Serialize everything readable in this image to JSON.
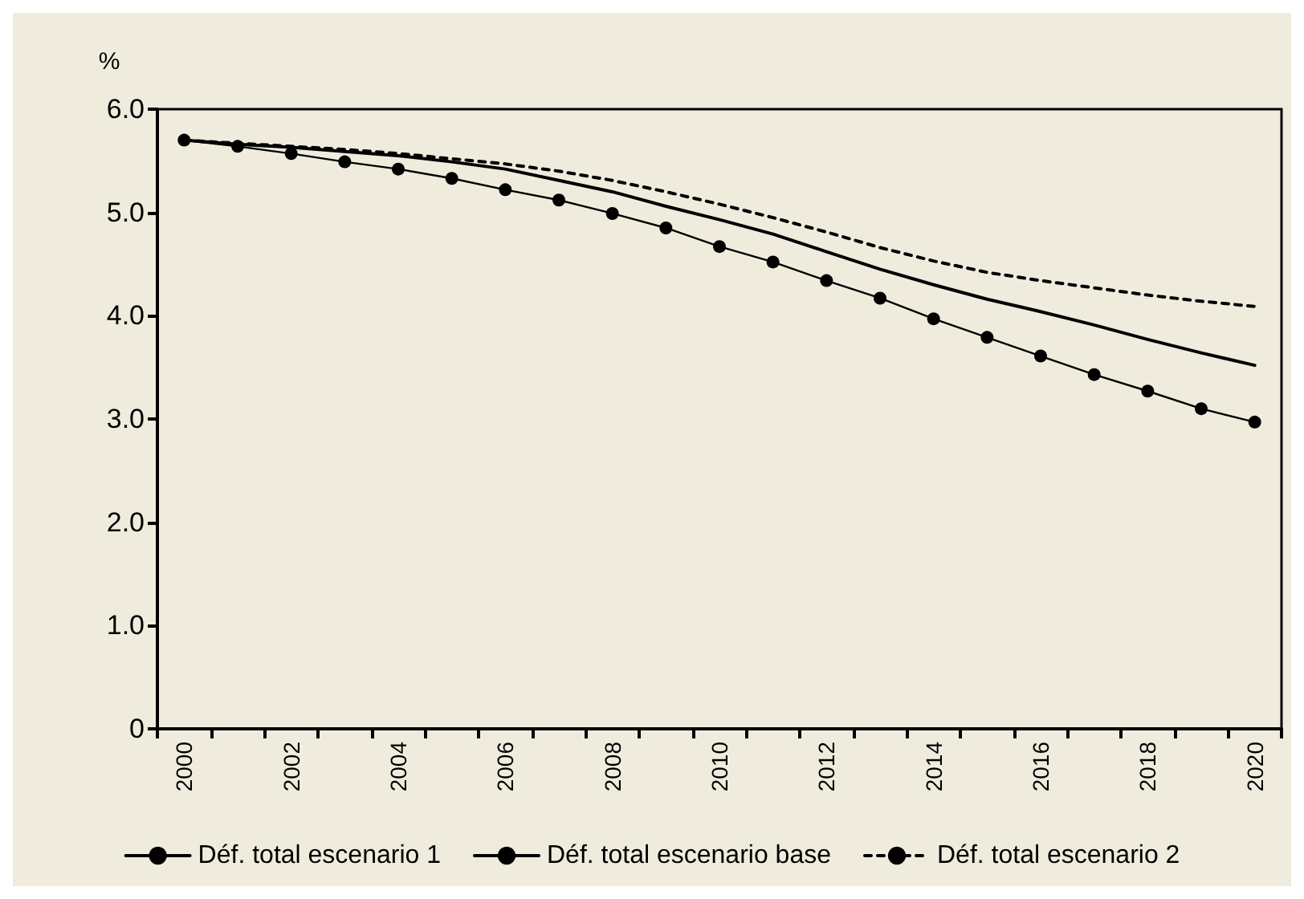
{
  "chart_data": {
    "type": "line",
    "ylabel": "%",
    "categories": [
      "2000",
      null,
      "2002",
      null,
      "2004",
      null,
      "2006",
      null,
      "2008",
      null,
      "2010",
      null,
      "2012",
      null,
      "2014",
      null,
      "2016",
      null,
      "2018",
      null,
      "2020"
    ],
    "series": [
      {
        "name": "Déf. total escenario 1",
        "color": "#000000",
        "marker": "circle",
        "line_style": "solid",
        "values": [
          5.7,
          5.64,
          5.57,
          5.49,
          5.42,
          5.33,
          5.22,
          5.12,
          4.99,
          4.85,
          4.67,
          4.52,
          4.34,
          4.17,
          3.97,
          3.79,
          3.61,
          3.43,
          3.27,
          3.1,
          2.97
        ]
      },
      {
        "name": "Déf. total escenario base",
        "color": "#000000",
        "marker": "none",
        "line_style": "solid",
        "values": [
          5.7,
          5.66,
          5.63,
          5.59,
          5.55,
          5.49,
          5.42,
          5.31,
          5.2,
          5.06,
          4.93,
          4.79,
          4.62,
          4.45,
          4.3,
          4.16,
          4.04,
          3.91,
          3.77,
          3.64,
          3.52
        ]
      },
      {
        "name": "Déf. total escenario 2",
        "color": "#000000",
        "marker": "none",
        "line_style": "dashed",
        "values": [
          5.7,
          5.67,
          5.64,
          5.61,
          5.57,
          5.52,
          5.47,
          5.4,
          5.31,
          5.2,
          5.08,
          4.95,
          4.81,
          4.66,
          4.53,
          4.42,
          4.34,
          4.27,
          4.2,
          4.14,
          4.09
        ]
      }
    ],
    "ylim": [
      0,
      6
    ],
    "yticks": [
      {
        "value": 0,
        "label": "0"
      },
      {
        "value": 1,
        "label": "1.0"
      },
      {
        "value": 2,
        "label": "2.0"
      },
      {
        "value": 3,
        "label": "3.0"
      },
      {
        "value": 4,
        "label": "4.0"
      },
      {
        "value": 5,
        "label": "5.0"
      },
      {
        "value": 6,
        "label": "6.0"
      }
    ],
    "grid": false,
    "legend": "bottom"
  }
}
